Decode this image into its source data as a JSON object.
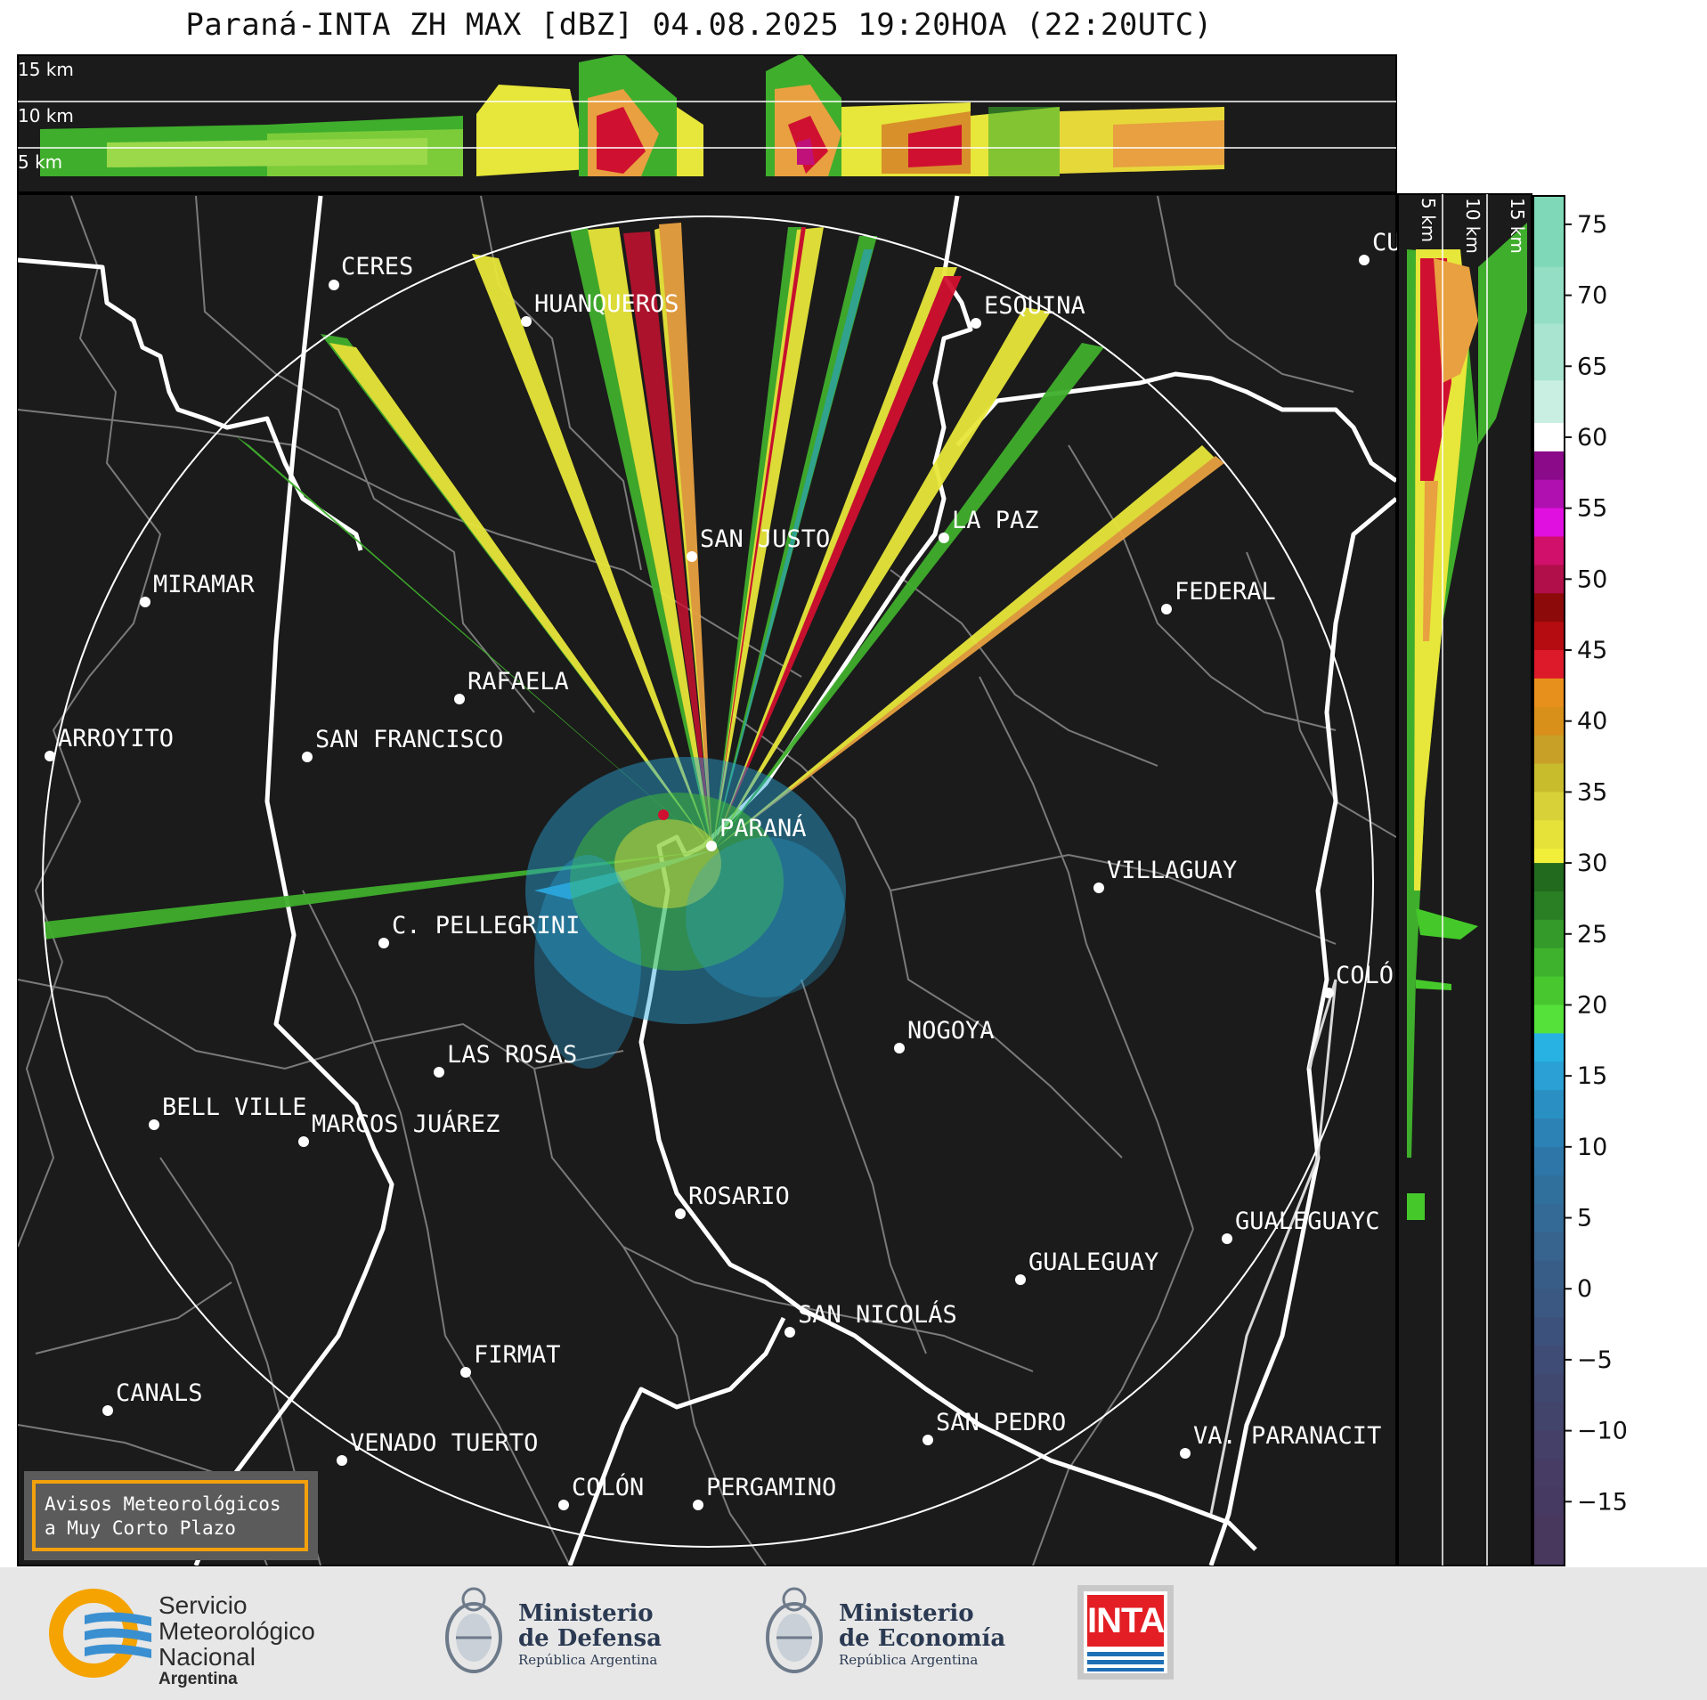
{
  "title": "Paraná-INTA ZH MAX [dBZ] 04.08.2025 19:20HOA (22:20UTC)",
  "top_panel_labels": [
    "15 km",
    "10 km",
    "5 km"
  ],
  "side_panel_labels": [
    "5 km",
    "10 km",
    "15 km"
  ],
  "colorbar": {
    "ticks": [
      "75",
      "70",
      "65",
      "60",
      "55",
      "50",
      "45",
      "40",
      "35",
      "30",
      "25",
      "20",
      "15",
      "10",
      "5",
      "0",
      "−5",
      "−10",
      "−15"
    ]
  },
  "cities": [
    {
      "name": "CERES"
    },
    {
      "name": "HUANQUEROS"
    },
    {
      "name": "ESQUINA"
    },
    {
      "name": "CU"
    },
    {
      "name": "SAN JUSTO"
    },
    {
      "name": "LA PAZ"
    },
    {
      "name": "MIRAMAR"
    },
    {
      "name": "FEDERAL"
    },
    {
      "name": "RAFAELA"
    },
    {
      "name": "ARROYITO"
    },
    {
      "name": "SAN FRANCISCO"
    },
    {
      "name": "PARANÁ"
    },
    {
      "name": "VILLAGUAY"
    },
    {
      "name": "C. PELLEGRINI"
    },
    {
      "name": "COLÓ"
    },
    {
      "name": "NOGOYA"
    },
    {
      "name": "LAS ROSAS"
    },
    {
      "name": "BELL VILLE"
    },
    {
      "name": "MARCOS JUÁREZ"
    },
    {
      "name": "ROSARIO"
    },
    {
      "name": "GUALEGUAYC"
    },
    {
      "name": "GUALEGUAY"
    },
    {
      "name": "SAN NICOLÁS"
    },
    {
      "name": "FIRMAT"
    },
    {
      "name": "CANALS"
    },
    {
      "name": "SAN PEDRO"
    },
    {
      "name": "VENADO TUERTO"
    },
    {
      "name": "VA. PARANACIT"
    },
    {
      "name": "COLÓN"
    },
    {
      "name": "PERGAMINO"
    }
  ],
  "notice": {
    "line1": "Avisos Meteorológicos",
    "line2": "a Muy Corto Plazo"
  },
  "footer": {
    "smn": {
      "line1": "Servicio",
      "line2": "Meteorológico",
      "line3": "Nacional",
      "line4": "Argentina"
    },
    "defensa": {
      "line1": "Ministerio",
      "line2": "de Defensa",
      "line3": "República Argentina"
    },
    "economia": {
      "line1": "Ministerio",
      "line2": "de Economía",
      "line3": "República Argentina"
    },
    "inta": "INTA"
  },
  "colors": {
    "background": "#1b1b1b",
    "range_ring": "#ffffff",
    "notice_border": "#f2a10c"
  }
}
